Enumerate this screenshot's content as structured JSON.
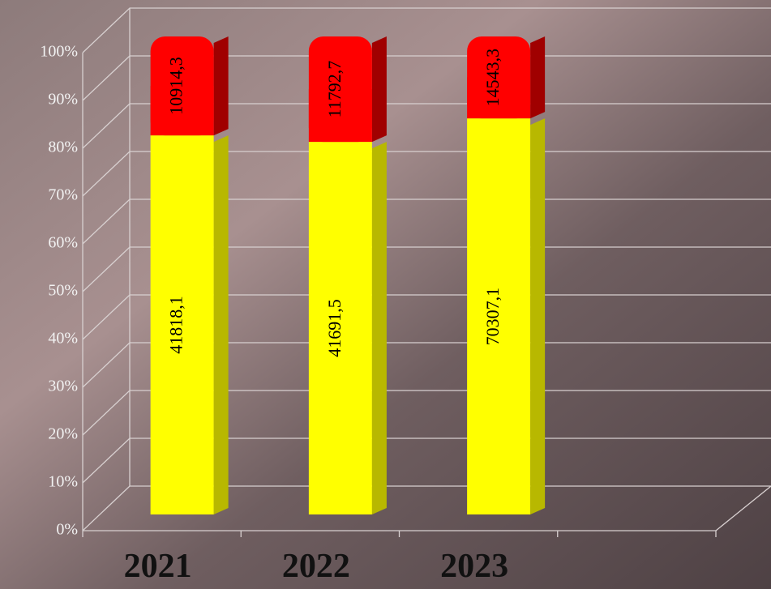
{
  "chart_data": {
    "type": "bar",
    "stacking": "percent",
    "categories": [
      "2021",
      "2022",
      "2023",
      null
    ],
    "series": [
      {
        "color": "#ffff00",
        "side_color": "#b8b800",
        "values": [
          41818.1,
          41691.5,
          70307.1,
          null
        ],
        "value_labels": [
          "41818,1",
          "41691,5",
          "70307,1",
          null
        ]
      },
      {
        "color": "#ff0000",
        "side_color": "#a00000",
        "values": [
          10914.3,
          11792.7,
          14543.3,
          null
        ],
        "value_labels": [
          "10914,3",
          "11792,7",
          "14543,3",
          null
        ]
      }
    ],
    "ylim": [
      0,
      100
    ],
    "yticks": [
      {
        "value": 0,
        "label": "0%"
      },
      {
        "value": 10,
        "label": "10%"
      },
      {
        "value": 20,
        "label": "20%"
      },
      {
        "value": 30,
        "label": "30%"
      },
      {
        "value": 40,
        "label": "40%"
      },
      {
        "value": 50,
        "label": "50%"
      },
      {
        "value": 60,
        "label": "60%"
      },
      {
        "value": 70,
        "label": "70%"
      },
      {
        "value": 80,
        "label": "80%"
      },
      {
        "value": 90,
        "label": "90%"
      },
      {
        "value": 100,
        "label": "100%"
      }
    ],
    "grid": true
  }
}
